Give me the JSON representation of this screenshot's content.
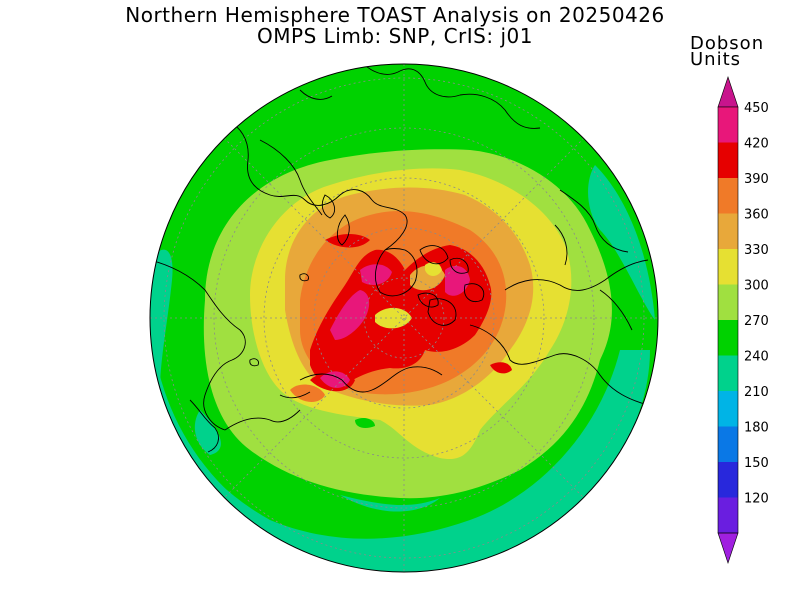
{
  "title": {
    "line1": "Northern Hemisphere TOAST Analysis on 20250426",
    "line2": "OMPS Limb: SNP, CrIS: j01"
  },
  "legend": {
    "units_line1": "Dobson",
    "units_line2": "Units",
    "levels": [
      {
        "value": "450",
        "color": "#e8177a"
      },
      {
        "value": "420",
        "color": "#e60000"
      },
      {
        "value": "390",
        "color": "#f07a28"
      },
      {
        "value": "360",
        "color": "#e8a83a"
      },
      {
        "value": "330",
        "color": "#e6e032"
      },
      {
        "value": "300",
        "color": "#a0e040"
      },
      {
        "value": "270",
        "color": "#00d200"
      },
      {
        "value": "240",
        "color": "#00d28c"
      },
      {
        "value": "210",
        "color": "#00b4e6"
      },
      {
        "value": "180",
        "color": "#0a78e6"
      },
      {
        "value": "150",
        "color": "#2828dc"
      },
      {
        "value": "120",
        "color": "#6a1ee0"
      }
    ],
    "min_color": "#a020e0",
    "max_color": "#c8148c"
  }
}
